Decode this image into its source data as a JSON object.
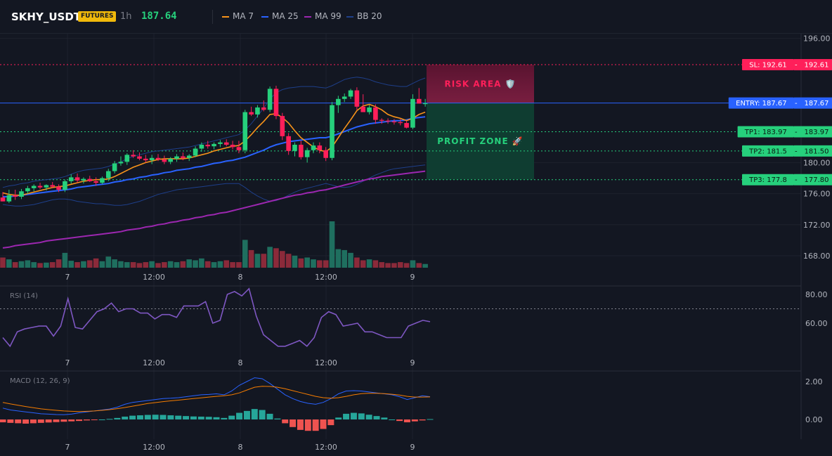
{
  "header": {
    "symbol": "SKHY_USDT",
    "badge": "FUTURES",
    "timeframe": "1h",
    "price": "187.64",
    "legend": [
      {
        "label": "MA 7",
        "color": "#f7931a"
      },
      {
        "label": "MA 25",
        "color": "#2962ff"
      },
      {
        "label": "MA 99",
        "color": "#9c27b0"
      },
      {
        "label": "BB 20",
        "color": "#1e3f8a"
      }
    ]
  },
  "colors": {
    "up": "#26d07c",
    "down": "#ff1f5a",
    "vol_up": "#1f6f5f",
    "vol_down": "#8b2a3a",
    "rsi": "#7e57c2",
    "macd": "#2962ff",
    "signal": "#f57c00",
    "hist_up": "#26a69a",
    "hist_down": "#ef5350"
  },
  "x_labels": [
    "7",
    "12:00",
    "8",
    "12:00",
    "9"
  ],
  "chart_data": [
    {
      "type": "candlestick",
      "ylim": [
        166,
        197
      ],
      "y_ticks": [
        "196.00",
        "180.00",
        "176.00",
        "172.00",
        "168.00"
      ],
      "candles": [
        [
          175.5,
          176.2,
          175.0,
          175.0
        ],
        [
          175.0,
          176.5,
          174.8,
          175.8
        ],
        [
          175.8,
          176.5,
          175.2,
          175.6
        ],
        [
          175.6,
          176.6,
          175.3,
          176.3
        ],
        [
          176.3,
          177.0,
          176.0,
          176.7
        ],
        [
          176.7,
          177.2,
          176.3,
          177.0
        ],
        [
          177.0,
          177.4,
          176.6,
          176.8
        ],
        [
          176.8,
          177.2,
          176.4,
          177.1
        ],
        [
          177.1,
          177.5,
          176.7,
          176.9
        ],
        [
          176.9,
          177.2,
          176.2,
          176.5
        ],
        [
          176.5,
          177.8,
          176.2,
          177.6
        ],
        [
          177.6,
          178.5,
          177.3,
          178.1
        ],
        [
          178.1,
          178.6,
          177.4,
          177.7
        ],
        [
          177.7,
          178.1,
          177.3,
          177.9
        ],
        [
          177.9,
          178.3,
          177.5,
          177.6
        ],
        [
          177.6,
          178.1,
          177.0,
          177.4
        ],
        [
          177.4,
          178.2,
          177.2,
          178.0
        ],
        [
          178.0,
          179.2,
          177.6,
          178.9
        ],
        [
          178.9,
          180.2,
          178.6,
          179.9
        ],
        [
          179.9,
          180.8,
          179.6,
          180.1
        ],
        [
          180.1,
          181.2,
          179.7,
          181.0
        ],
        [
          181.0,
          181.6,
          180.6,
          180.8
        ],
        [
          180.8,
          181.3,
          180.3,
          180.5
        ],
        [
          180.5,
          181.0,
          180.0,
          180.3
        ],
        [
          180.3,
          181.0,
          179.8,
          180.6
        ],
        [
          180.6,
          181.1,
          180.2,
          180.4
        ],
        [
          180.4,
          180.9,
          179.8,
          180.1
        ],
        [
          180.1,
          180.7,
          179.8,
          180.5
        ],
        [
          180.5,
          181.1,
          180.1,
          180.8
        ],
        [
          180.8,
          181.3,
          180.3,
          180.6
        ],
        [
          180.6,
          181.1,
          180.2,
          180.9
        ],
        [
          180.9,
          182.1,
          180.7,
          181.8
        ],
        [
          181.8,
          182.6,
          181.4,
          182.3
        ],
        [
          182.3,
          182.8,
          181.8,
          182.1
        ],
        [
          182.1,
          182.6,
          181.7,
          182.4
        ],
        [
          182.4,
          182.9,
          182.0,
          182.6
        ],
        [
          182.6,
          183.0,
          182.1,
          182.3
        ],
        [
          182.3,
          182.8,
          181.7,
          182.0
        ],
        [
          182.0,
          182.8,
          181.2,
          181.6
        ],
        [
          181.6,
          186.8,
          181.2,
          186.5
        ],
        [
          186.5,
          187.2,
          186.0,
          186.2
        ],
        [
          186.2,
          187.4,
          185.8,
          187.1
        ],
        [
          187.1,
          188.0,
          186.6,
          186.8
        ],
        [
          186.8,
          189.8,
          186.5,
          189.5
        ],
        [
          189.5,
          189.9,
          185.6,
          186.0
        ],
        [
          186.0,
          186.4,
          182.9,
          183.4
        ],
        [
          183.4,
          183.8,
          181.0,
          181.5
        ],
        [
          181.5,
          182.6,
          180.8,
          182.3
        ],
        [
          182.3,
          182.8,
          180.4,
          180.7
        ],
        [
          180.7,
          181.9,
          180.0,
          181.6
        ],
        [
          181.6,
          182.6,
          181.2,
          182.2
        ],
        [
          182.2,
          182.6,
          181.2,
          181.6
        ],
        [
          181.6,
          182.0,
          180.2,
          180.6
        ],
        [
          180.6,
          187.8,
          180.3,
          187.4
        ],
        [
          187.4,
          188.6,
          186.4,
          188.2
        ],
        [
          188.2,
          188.9,
          187.8,
          188.5
        ],
        [
          188.5,
          189.5,
          188.2,
          189.3
        ],
        [
          189.3,
          189.7,
          186.8,
          187.2
        ],
        [
          187.2,
          188.8,
          186.6,
          186.5
        ],
        [
          186.5,
          187.4,
          186.2,
          187.1
        ],
        [
          187.1,
          187.5,
          185.0,
          185.5
        ],
        [
          185.5,
          185.7,
          185.0,
          185.4
        ],
        [
          185.4,
          185.7,
          185.0,
          185.3
        ],
        [
          185.3,
          185.6,
          184.9,
          185.2
        ],
        [
          185.2,
          185.6,
          184.8,
          185.1
        ],
        [
          185.1,
          185.4,
          184.4,
          184.5
        ],
        [
          184.5,
          188.8,
          184.3,
          188.2
        ],
        [
          188.2,
          189.6,
          187.6,
          187.6
        ],
        [
          187.6,
          188.2,
          187.2,
          187.64
        ]
      ],
      "ma7": [
        176.1,
        175.9,
        175.8,
        175.8,
        176.0,
        176.2,
        176.4,
        176.6,
        176.8,
        176.9,
        177.0,
        177.2,
        177.4,
        177.6,
        177.7,
        177.8,
        177.8,
        177.9,
        178.2,
        178.6,
        179.0,
        179.4,
        179.7,
        180.0,
        180.2,
        180.4,
        180.5,
        180.5,
        180.5,
        180.5,
        180.6,
        180.8,
        181.0,
        181.2,
        181.5,
        181.7,
        181.9,
        182.1,
        182.2,
        182.8,
        183.6,
        184.5,
        185.3,
        186.2,
        186.3,
        185.8,
        185.1,
        184.1,
        183.2,
        182.6,
        182.0,
        181.6,
        181.4,
        182.0,
        183.2,
        184.4,
        185.5,
        186.7,
        187.3,
        187.5,
        187.2,
        186.8,
        186.2,
        185.9,
        185.7,
        185.4,
        185.7,
        186.2,
        186.5
      ],
      "ma25": [
        175.6,
        175.6,
        175.7,
        175.8,
        175.9,
        176.0,
        176.1,
        176.2,
        176.3,
        176.4,
        176.5,
        176.6,
        176.8,
        176.9,
        177.0,
        177.1,
        177.2,
        177.3,
        177.5,
        177.6,
        177.8,
        177.9,
        178.1,
        178.2,
        178.4,
        178.5,
        178.7,
        178.8,
        179.0,
        179.1,
        179.2,
        179.4,
        179.5,
        179.7,
        179.9,
        180.0,
        180.2,
        180.3,
        180.5,
        180.7,
        181.0,
        181.3,
        181.6,
        182.0,
        182.3,
        182.5,
        182.7,
        182.8,
        182.9,
        183.0,
        183.1,
        183.2,
        183.2,
        183.4,
        183.7,
        184.0,
        184.3,
        184.6,
        184.8,
        185.0,
        185.1,
        185.2,
        185.3,
        185.4,
        185.4,
        185.5,
        185.7,
        185.8,
        185.9
      ],
      "ma99": [
        169.0,
        169.1,
        169.3,
        169.4,
        169.5,
        169.6,
        169.7,
        169.9,
        170.0,
        170.1,
        170.2,
        170.3,
        170.4,
        170.5,
        170.6,
        170.7,
        170.8,
        170.9,
        171.0,
        171.1,
        171.3,
        171.4,
        171.5,
        171.7,
        171.8,
        172.0,
        172.1,
        172.3,
        172.4,
        172.6,
        172.7,
        172.9,
        173.0,
        173.2,
        173.3,
        173.5,
        173.6,
        173.8,
        174.0,
        174.2,
        174.4,
        174.6,
        174.8,
        175.0,
        175.2,
        175.4,
        175.6,
        175.8,
        175.9,
        176.1,
        176.2,
        176.4,
        176.5,
        176.7,
        176.9,
        177.1,
        177.3,
        177.5,
        177.7,
        177.9,
        178.0,
        178.2,
        178.3,
        178.4,
        178.5,
        178.6,
        178.7,
        178.8,
        178.9
      ],
      "bb_upper": [
        176.8,
        177.0,
        177.1,
        177.3,
        177.4,
        177.6,
        177.7,
        177.8,
        177.9,
        178.0,
        178.2,
        178.5,
        178.8,
        179.0,
        179.1,
        179.2,
        179.3,
        179.5,
        179.8,
        180.1,
        180.5,
        180.8,
        181.0,
        181.2,
        181.4,
        181.5,
        181.6,
        181.7,
        181.8,
        181.9,
        182.0,
        182.2,
        182.4,
        182.6,
        182.8,
        183.0,
        183.2,
        183.4,
        183.6,
        184.2,
        185.0,
        186.0,
        187.0,
        188.2,
        189.0,
        189.4,
        189.6,
        189.7,
        189.8,
        189.8,
        189.8,
        189.7,
        189.6,
        189.9,
        190.3,
        190.7,
        190.9,
        191.0,
        190.9,
        190.7,
        190.4,
        190.2,
        190.0,
        189.9,
        189.8,
        189.8,
        190.2,
        190.6,
        190.9
      ],
      "bb_lower": [
        174.6,
        174.5,
        174.4,
        174.4,
        174.5,
        174.6,
        174.8,
        175.0,
        175.2,
        175.3,
        175.3,
        175.2,
        175.0,
        174.9,
        174.8,
        174.7,
        174.7,
        174.6,
        174.5,
        174.5,
        174.6,
        174.8,
        175.0,
        175.3,
        175.6,
        175.9,
        176.1,
        176.3,
        176.5,
        176.6,
        176.7,
        176.8,
        176.9,
        177.0,
        177.1,
        177.2,
        177.3,
        177.3,
        177.3,
        176.8,
        176.2,
        175.7,
        175.3,
        175.0,
        175.1,
        175.4,
        175.8,
        176.2,
        176.5,
        176.7,
        176.9,
        177.1,
        177.3,
        177.1,
        176.9,
        176.8,
        176.9,
        177.2,
        177.6,
        178.0,
        178.4,
        178.7,
        179.0,
        179.2,
        179.3,
        179.4,
        179.5,
        179.6,
        179.7
      ],
      "volume_max": 100,
      "volume": [
        22,
        18,
        12,
        14,
        16,
        12,
        10,
        11,
        12,
        18,
        32,
        15,
        12,
        14,
        16,
        20,
        14,
        24,
        18,
        14,
        12,
        12,
        10,
        12,
        14,
        10,
        12,
        14,
        12,
        14,
        18,
        16,
        20,
        14,
        12,
        14,
        16,
        12,
        12,
        60,
        38,
        30,
        30,
        45,
        42,
        36,
        30,
        26,
        20,
        22,
        18,
        16,
        16,
        100,
        40,
        38,
        32,
        22,
        16,
        18,
        16,
        12,
        10,
        10,
        12,
        10,
        16,
        10,
        8
      ]
    },
    {
      "type": "line",
      "title": "RSI (14)",
      "ylim": [
        30,
        85
      ],
      "y_ticks": [
        "80.00",
        "60.00"
      ],
      "reference_line": 70,
      "values": [
        50,
        44,
        54,
        56,
        57,
        58,
        58,
        51,
        58,
        77,
        57,
        56,
        62,
        68,
        70,
        74,
        68,
        70,
        70,
        67,
        67,
        63,
        66,
        66,
        64,
        72,
        72,
        72,
        75,
        60,
        62,
        80,
        82,
        79,
        84,
        65,
        52,
        48,
        44,
        44,
        46,
        48,
        44,
        50,
        64,
        68,
        66,
        58,
        59,
        60,
        54,
        54,
        52,
        50,
        50,
        50,
        58,
        60,
        62,
        61
      ]
    },
    {
      "type": "line",
      "title": "MACD (12, 26, 9)",
      "ylim": [
        -1.0,
        2.8
      ],
      "y_ticks": [
        "2.00",
        "0.00"
      ],
      "macd": [
        0.6,
        0.5,
        0.45,
        0.4,
        0.35,
        0.3,
        0.28,
        0.26,
        0.25,
        0.28,
        0.35,
        0.4,
        0.45,
        0.5,
        0.55,
        0.65,
        0.8,
        0.9,
        0.95,
        1.0,
        1.05,
        1.1,
        1.12,
        1.15,
        1.2,
        1.25,
        1.3,
        1.32,
        1.35,
        1.3,
        1.5,
        1.8,
        2.0,
        2.2,
        2.15,
        1.9,
        1.6,
        1.3,
        1.1,
        0.95,
        0.85,
        0.8,
        0.9,
        1.1,
        1.35,
        1.5,
        1.52,
        1.5,
        1.45,
        1.4,
        1.35,
        1.3,
        1.2,
        1.05,
        1.15,
        1.25,
        1.2
      ],
      "signal": [
        0.9,
        0.82,
        0.75,
        0.68,
        0.62,
        0.56,
        0.52,
        0.48,
        0.45,
        0.43,
        0.42,
        0.43,
        0.45,
        0.48,
        0.52,
        0.57,
        0.63,
        0.7,
        0.77,
        0.84,
        0.89,
        0.94,
        0.98,
        1.02,
        1.06,
        1.1,
        1.14,
        1.18,
        1.22,
        1.25,
        1.3,
        1.4,
        1.55,
        1.7,
        1.75,
        1.74,
        1.7,
        1.62,
        1.52,
        1.42,
        1.32,
        1.22,
        1.15,
        1.12,
        1.15,
        1.22,
        1.3,
        1.36,
        1.38,
        1.38,
        1.36,
        1.33,
        1.29,
        1.22,
        1.18,
        1.18,
        1.19
      ],
      "histogram": [
        -0.15,
        -0.18,
        -0.2,
        -0.22,
        -0.2,
        -0.18,
        -0.16,
        -0.14,
        -0.12,
        -0.1,
        -0.08,
        -0.05,
        -0.03,
        0,
        0.03,
        0.08,
        0.15,
        0.2,
        0.22,
        0.24,
        0.25,
        0.24,
        0.22,
        0.2,
        0.18,
        0.16,
        0.15,
        0.14,
        0.12,
        0.08,
        0.2,
        0.35,
        0.45,
        0.55,
        0.5,
        0.3,
        0.05,
        -0.2,
        -0.4,
        -0.55,
        -0.6,
        -0.6,
        -0.5,
        -0.3,
        0.1,
        0.3,
        0.35,
        0.32,
        0.25,
        0.18,
        0.1,
        0,
        -0.08,
        -0.15,
        -0.1,
        -0.05,
        0.02
      ]
    }
  ],
  "levels": {
    "sl": {
      "label": "SL: 192.61",
      "price": "192.61",
      "value": 192.61,
      "color": "#ff1f5a"
    },
    "entry": {
      "label": "ENTRY: 187.67",
      "price": "187.67",
      "value": 187.67,
      "color": "#2962ff"
    },
    "tps": [
      {
        "label": "TP1: 183.97",
        "price": "183.97",
        "value": 183.97
      },
      {
        "label": "TP2: 181.5",
        "price": "181.50",
        "value": 181.5
      },
      {
        "label": "TP3: 177.8",
        "price": "177.80",
        "value": 177.8
      }
    ],
    "tp_color": "#26d07c"
  },
  "zones": {
    "risk": {
      "label": "RISK AREA 🛡️",
      "color": "#ff1f5a"
    },
    "profit": {
      "label": "PROFIT ZONE 🚀",
      "color": "#26d07c"
    }
  }
}
